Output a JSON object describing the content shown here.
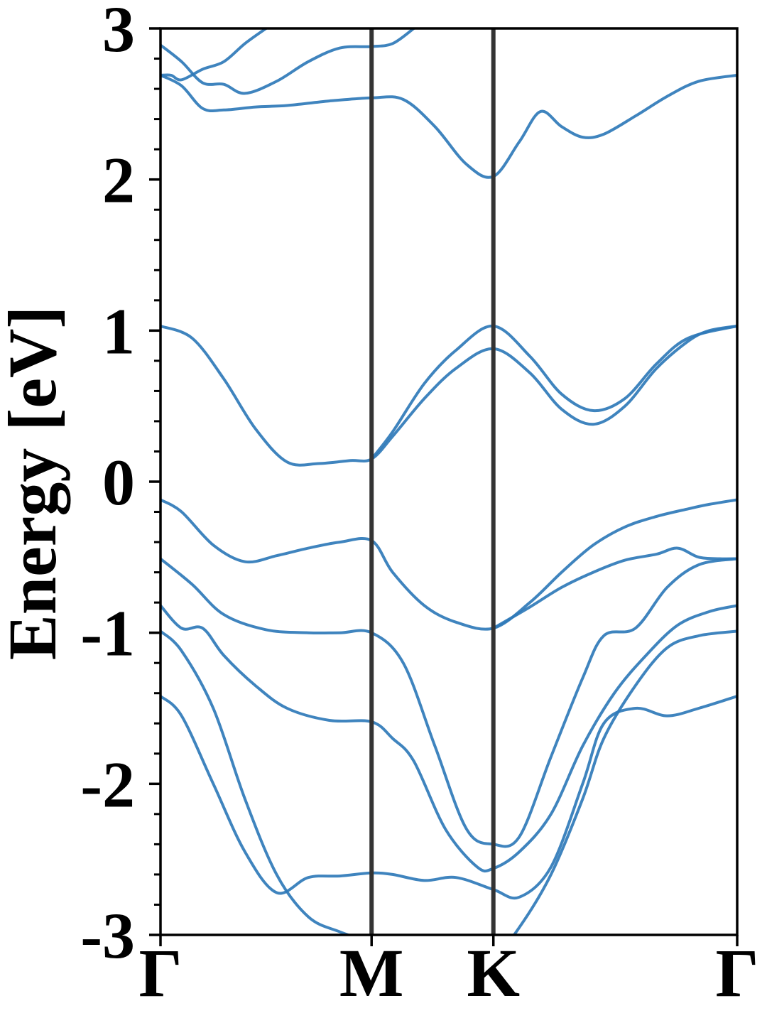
{
  "chart_data": {
    "type": "line",
    "title": "",
    "xlabel": "",
    "ylabel": "Energy [eV]",
    "ylim": [
      -3,
      3
    ],
    "xlim": [
      0,
      2.732
    ],
    "y_ticks": [
      -3,
      -2,
      -1,
      0,
      1,
      2,
      3
    ],
    "y_tick_labels": [
      "-3",
      "-2",
      "-1",
      "0",
      "1",
      "2",
      "3"
    ],
    "y_minor_step": 0.2,
    "x_ticks": [
      0,
      1.0,
      1.577,
      2.732
    ],
    "x_tick_labels": [
      "Γ",
      "M",
      "K",
      "Γ"
    ],
    "grid": false,
    "legend": "none",
    "vlines": [
      1.0,
      1.577
    ],
    "vline_color": "#333333",
    "line_color": "#2f7ab8",
    "series": [
      {
        "x": [
          0,
          0.1,
          0.25,
          0.4,
          0.55,
          0.7,
          0.85,
          1.0,
          1.1,
          1.25,
          1.4,
          1.577,
          1.7,
          1.85,
          2.0,
          2.1,
          2.25,
          2.4,
          2.55,
          2.732
        ],
        "y": [
          -1.42,
          -1.55,
          -2.0,
          -2.45,
          -2.72,
          -2.62,
          -2.61,
          -2.59,
          -2.6,
          -2.64,
          -2.62,
          -2.7,
          -2.75,
          -2.55,
          -2.0,
          -1.6,
          -1.5,
          -1.55,
          -1.5,
          -1.42
        ]
      },
      {
        "x": [
          0,
          0.1,
          0.25,
          0.4,
          0.55,
          0.7,
          0.85,
          1.0,
          1.1,
          1.25,
          1.4,
          1.577,
          1.7,
          1.85,
          2.0,
          2.1,
          2.25,
          2.4,
          2.55,
          2.732
        ],
        "y": [
          -0.99,
          -1.12,
          -1.5,
          -2.1,
          -2.6,
          -2.88,
          -2.98,
          -3.05,
          -3.1,
          -3.2,
          -3.25,
          -3.15,
          -2.95,
          -2.6,
          -2.1,
          -1.7,
          -1.35,
          -1.1,
          -1.02,
          -0.99
        ]
      },
      {
        "x": [
          0,
          0.1,
          0.2,
          0.3,
          0.45,
          0.6,
          0.8,
          1.0,
          1.1,
          1.2,
          1.35,
          1.5,
          1.577,
          1.7,
          1.85,
          2.0,
          2.15,
          2.3,
          2.45,
          2.6,
          2.732
        ],
        "y": [
          -0.82,
          -0.97,
          -0.97,
          -1.15,
          -1.35,
          -1.5,
          -1.58,
          -1.59,
          -1.7,
          -1.85,
          -2.3,
          -2.55,
          -2.56,
          -2.45,
          -2.2,
          -1.75,
          -1.4,
          -1.15,
          -0.95,
          -0.86,
          -0.82
        ]
      },
      {
        "x": [
          0,
          0.15,
          0.3,
          0.5,
          0.7,
          0.85,
          1.0,
          1.15,
          1.3,
          1.45,
          1.577,
          1.7,
          1.85,
          2.0,
          2.1,
          2.25,
          2.4,
          2.55,
          2.732
        ],
        "y": [
          -0.51,
          -0.68,
          -0.88,
          -0.98,
          -1.0,
          -1.0,
          -1.0,
          -1.2,
          -1.75,
          -2.3,
          -2.4,
          -2.35,
          -1.82,
          -1.3,
          -1.02,
          -0.97,
          -0.7,
          -0.55,
          -0.51
        ]
      },
      {
        "x": [
          0,
          0.1,
          0.25,
          0.4,
          0.55,
          0.7,
          0.85,
          1.0,
          1.1,
          1.25,
          1.4,
          1.577,
          1.75,
          1.9,
          2.05,
          2.2,
          2.35,
          2.5,
          2.6,
          2.732
        ],
        "y": [
          -0.12,
          -0.2,
          -0.42,
          -0.53,
          -0.49,
          -0.44,
          -0.4,
          -0.39,
          -0.6,
          -0.82,
          -0.93,
          -0.97,
          -0.8,
          -0.6,
          -0.42,
          -0.3,
          -0.23,
          -0.18,
          -0.15,
          -0.12
        ]
      },
      {
        "x": [
          1.577,
          1.75,
          1.9,
          2.05,
          2.2,
          2.35,
          2.45,
          2.55,
          2.65,
          2.732
        ],
        "y": [
          -0.97,
          -0.83,
          -0.7,
          -0.6,
          -0.52,
          -0.48,
          -0.44,
          -0.5,
          -0.51,
          -0.51
        ]
      },
      {
        "x": [
          0,
          0.15,
          0.3,
          0.45,
          0.6,
          0.75,
          0.9,
          1.0,
          1.1,
          1.25,
          1.4,
          1.577,
          1.75,
          1.9,
          2.05,
          2.2,
          2.35,
          2.5,
          2.6,
          2.732
        ],
        "y": [
          1.03,
          0.95,
          0.68,
          0.35,
          0.13,
          0.12,
          0.14,
          0.15,
          0.3,
          0.55,
          0.75,
          0.88,
          0.72,
          0.48,
          0.38,
          0.5,
          0.75,
          0.93,
          1.0,
          1.03
        ]
      },
      {
        "x": [
          1.0,
          1.1,
          1.25,
          1.4,
          1.577,
          1.75,
          1.9,
          2.05,
          2.2,
          2.35,
          2.5,
          2.732
        ],
        "y": [
          0.15,
          0.33,
          0.65,
          0.87,
          1.03,
          0.83,
          0.58,
          0.47,
          0.55,
          0.78,
          0.95,
          1.03
        ]
      },
      {
        "x": [
          0,
          0.1,
          0.2,
          0.3,
          0.45,
          0.6,
          0.8,
          1.0,
          1.15,
          1.3,
          1.45,
          1.577,
          1.7,
          1.8,
          1.9,
          2.0,
          2.1,
          2.25,
          2.4,
          2.55,
          2.732
        ],
        "y": [
          2.69,
          2.62,
          2.47,
          2.46,
          2.48,
          2.49,
          2.52,
          2.54,
          2.53,
          2.35,
          2.1,
          2.02,
          2.25,
          2.45,
          2.35,
          2.28,
          2.3,
          2.42,
          2.55,
          2.65,
          2.69
        ]
      },
      {
        "x": [
          0,
          0.1,
          0.2,
          0.3,
          0.4,
          0.55,
          0.7,
          0.85,
          1.0,
          1.1,
          1.2
        ],
        "y": [
          2.89,
          2.78,
          2.64,
          2.63,
          2.57,
          2.65,
          2.78,
          2.87,
          2.88,
          2.9,
          3.0
        ]
      },
      {
        "x": [
          0,
          0.05,
          0.1,
          0.2,
          0.3,
          0.4,
          0.5
        ],
        "y": [
          2.69,
          2.69,
          2.66,
          2.73,
          2.78,
          2.9,
          3.0
        ]
      }
    ]
  }
}
